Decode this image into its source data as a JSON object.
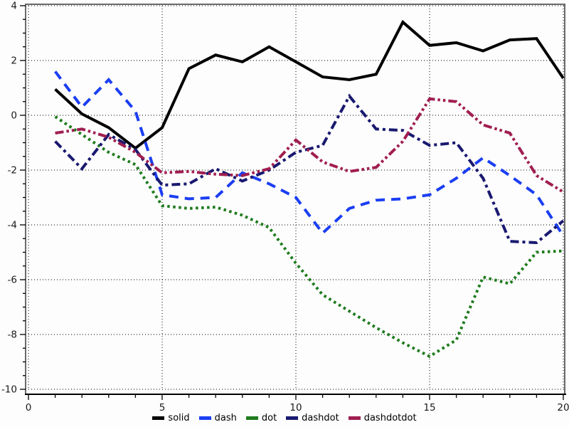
{
  "figure": {
    "background": "#fdfdfd",
    "plot_background": "#ffffff",
    "frame_color": "#6a6a6a",
    "axis_color": "#000000",
    "grid_style": "dotted",
    "tick_label_color": "#1a1a1a"
  },
  "chart_data": {
    "type": "line",
    "title": "",
    "xlabel": "",
    "ylabel": "",
    "xlim": [
      0,
      20
    ],
    "ylim": [
      -10,
      4
    ],
    "grid": "on",
    "legend_position": "bottom-center",
    "x": [
      1,
      2,
      3,
      4,
      5,
      6,
      7,
      8,
      9,
      10,
      11,
      12,
      13,
      14,
      15,
      16,
      17,
      18,
      19,
      20
    ],
    "series": [
      {
        "name": "solid",
        "color": "#000000",
        "line_style": "solid",
        "values": [
          0.95,
          0.05,
          -0.45,
          -1.2,
          -0.45,
          1.7,
          2.2,
          1.95,
          2.5,
          1.95,
          1.4,
          1.3,
          1.5,
          3.4,
          2.55,
          2.65,
          2.35,
          2.75,
          2.8,
          1.35
        ]
      },
      {
        "name": "dash",
        "color": "#1b3ef2",
        "line_style": "dash",
        "values": [
          1.6,
          0.3,
          1.3,
          0.15,
          -2.9,
          -3.05,
          -3.0,
          -2.1,
          -2.5,
          -3.0,
          -4.3,
          -3.4,
          -3.1,
          -3.05,
          -2.9,
          -2.3,
          -1.55,
          -2.2,
          -2.9,
          -4.4
        ]
      },
      {
        "name": "dot",
        "color": "#1e7b1e",
        "line_style": "dot",
        "values": [
          -0.05,
          -0.7,
          -1.35,
          -1.8,
          -3.3,
          -3.4,
          -3.35,
          -3.65,
          -4.1,
          -5.4,
          -6.55,
          -7.15,
          -7.75,
          -8.3,
          -8.8,
          -8.2,
          -5.9,
          -6.15,
          -5.0,
          -4.95
        ]
      },
      {
        "name": "dashdot",
        "color": "#191970",
        "line_style": "dashdot",
        "values": [
          -0.95,
          -1.95,
          -0.7,
          -1.25,
          -2.55,
          -2.5,
          -1.95,
          -2.4,
          -2.0,
          -1.35,
          -1.1,
          0.7,
          -0.5,
          -0.55,
          -1.1,
          -1.0,
          -2.3,
          -4.6,
          -4.65,
          -3.85
        ]
      },
      {
        "name": "dashdotdot",
        "color": "#a01e50",
        "line_style": "dashdotdot",
        "values": [
          -0.65,
          -0.5,
          -0.8,
          -1.35,
          -2.1,
          -2.05,
          -2.15,
          -2.2,
          -1.95,
          -0.9,
          -1.7,
          -2.05,
          -1.9,
          -0.95,
          0.6,
          0.5,
          -0.35,
          -0.65,
          -2.2,
          -2.8
        ]
      }
    ],
    "x_ticks": [
      {
        "value": 0,
        "label": "0"
      },
      {
        "value": 5,
        "label": "5"
      },
      {
        "value": 10,
        "label": "10"
      },
      {
        "value": 15,
        "label": "15"
      },
      {
        "value": 20,
        "label": "20"
      }
    ],
    "y_ticks": [
      {
        "value": 4,
        "label": "4"
      },
      {
        "value": 2,
        "label": "2"
      },
      {
        "value": 0,
        "label": "0"
      },
      {
        "value": -2,
        "label": "-2"
      },
      {
        "value": -4,
        "label": "-4"
      },
      {
        "value": -6,
        "label": "-6"
      },
      {
        "value": -8,
        "label": "-8"
      },
      {
        "value": -10,
        "label": "-10"
      }
    ],
    "x_minor_step": 1,
    "y_minor_step": 0.5
  }
}
